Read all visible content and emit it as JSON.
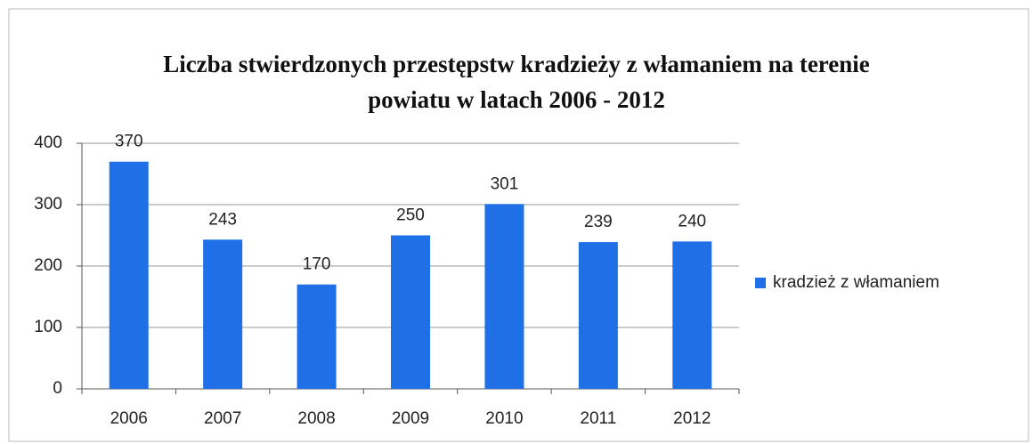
{
  "chart_data": {
    "type": "bar",
    "title": "Liczba stwierdzonych przestępstw kradzieży z włamaniem na terenie powiatu w latach 2006 - 2012",
    "categories": [
      "2006",
      "2007",
      "2008",
      "2009",
      "2010",
      "2011",
      "2012"
    ],
    "series": [
      {
        "name": "kradzież z włamaniem",
        "color": "#1f6fe6",
        "values": [
          370,
          243,
          170,
          250,
          301,
          239,
          240
        ]
      }
    ],
    "ylim": [
      0,
      400
    ],
    "yticks": [
      0,
      100,
      200,
      300,
      400
    ],
    "grid": true,
    "legend": "right"
  }
}
